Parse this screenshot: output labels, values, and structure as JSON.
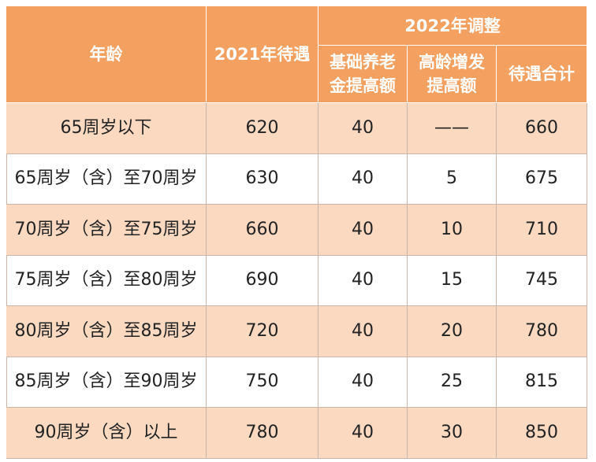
{
  "table": {
    "header": {
      "age": "年龄",
      "base_2021": "2021年待遇",
      "group_2022": "2022年调整",
      "sub": [
        "基础养老金提高额",
        "高龄增发提高额",
        "待遇合计"
      ]
    },
    "rows": [
      [
        "65周岁以下",
        620,
        40,
        "——",
        660
      ],
      [
        "65周岁（含）至70周岁",
        630,
        40,
        5,
        675
      ],
      [
        "70周岁（含）至75周岁",
        660,
        40,
        10,
        710
      ],
      [
        "75周岁（含）至80周岁",
        690,
        40,
        15,
        745
      ],
      [
        "80周岁（含）至85周岁",
        720,
        40,
        20,
        780
      ],
      [
        "85周岁（含）至90周岁",
        750,
        40,
        25,
        815
      ],
      [
        "90周岁（含）以上",
        780,
        40,
        30,
        850
      ]
    ]
  }
}
